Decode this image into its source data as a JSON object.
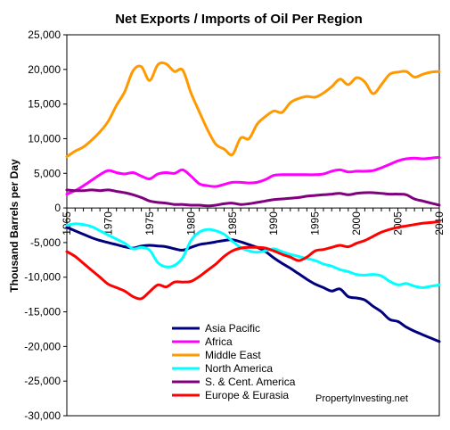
{
  "chart_data": {
    "type": "line",
    "title": "Net Exports / Imports of Oil Per Region",
    "xlabel": "",
    "ylabel": "Thousand Barrels per Day",
    "xlim": [
      1965,
      2010
    ],
    "ylim": [
      -30000,
      25000
    ],
    "x_ticks": [
      "1965",
      "1970",
      "1975",
      "1980",
      "1985",
      "1990",
      "1995",
      "2000",
      "2005",
      "2010"
    ],
    "y_ticks": [
      "25,000",
      "20,000",
      "15,000",
      "10,000",
      "5,000",
      "0",
      "-5,000",
      "-10,000",
      "-15,000",
      "-20,000",
      "-25,000",
      "-30,000"
    ],
    "grid": false,
    "legend_position": "bottom-left-inside",
    "annotation": "PropertyInvesting.net",
    "x": [
      1965,
      1966,
      1967,
      1968,
      1969,
      1970,
      1971,
      1972,
      1973,
      1974,
      1975,
      1976,
      1977,
      1978,
      1979,
      1980,
      1981,
      1982,
      1983,
      1984,
      1985,
      1986,
      1987,
      1988,
      1989,
      1990,
      1991,
      1992,
      1993,
      1994,
      1995,
      1996,
      1997,
      1998,
      1999,
      2000,
      2001,
      2002,
      2003,
      2004,
      2005,
      2006,
      2007,
      2008,
      2009,
      2010
    ],
    "series": [
      {
        "name": "Asia Pacific",
        "color": "#00007f",
        "values": [
          -2800,
          -3300,
          -3800,
          -4300,
          -4700,
          -5000,
          -5300,
          -5600,
          -5800,
          -5500,
          -5400,
          -5500,
          -5600,
          -5900,
          -6100,
          -5700,
          -5300,
          -5100,
          -4900,
          -4700,
          -4600,
          -4900,
          -5300,
          -5700,
          -6300,
          -7200,
          -8000,
          -8700,
          -9500,
          -10300,
          -11000,
          -11500,
          -12000,
          -11700,
          -12800,
          -13000,
          -13300,
          -14200,
          -15000,
          -16100,
          -16400,
          -17200,
          -17800,
          -18300,
          -18800,
          -19300
        ]
      },
      {
        "name": "Africa",
        "color": "#ff00ff",
        "values": [
          2000,
          2500,
          3200,
          4000,
          4800,
          5400,
          5100,
          4900,
          5100,
          4600,
          4200,
          4900,
          5100,
          5000,
          5500,
          4600,
          3500,
          3200,
          3100,
          3400,
          3700,
          3700,
          3600,
          3700,
          4100,
          4700,
          4800,
          4800,
          4800,
          4800,
          4800,
          4900,
          5300,
          5500,
          5200,
          5300,
          5300,
          5400,
          5800,
          6300,
          6800,
          7100,
          7200,
          7100,
          7200,
          7300
        ]
      },
      {
        "name": "Middle East",
        "color": "#ff9900",
        "values": [
          7400,
          8200,
          8800,
          9800,
          11000,
          12500,
          14800,
          16800,
          19800,
          20400,
          18400,
          20700,
          20800,
          19700,
          19900,
          16600,
          13900,
          11300,
          9200,
          8500,
          7700,
          10100,
          10000,
          12100,
          13200,
          14000,
          13800,
          15200,
          15800,
          16100,
          16000,
          16600,
          17500,
          18600,
          17800,
          18800,
          18200,
          16500,
          17800,
          19300,
          19600,
          19700,
          18900,
          19300,
          19600,
          19700
        ]
      },
      {
        "name": "North America",
        "color": "#00ffff",
        "values": [
          -2500,
          -2300,
          -2400,
          -2700,
          -3300,
          -3900,
          -4500,
          -5100,
          -5900,
          -5700,
          -6100,
          -7900,
          -8500,
          -8300,
          -7200,
          -4700,
          -3500,
          -3100,
          -3300,
          -3800,
          -4800,
          -5700,
          -6200,
          -6400,
          -6200,
          -5900,
          -6300,
          -6700,
          -7000,
          -7300,
          -7600,
          -8100,
          -8400,
          -8900,
          -9200,
          -9600,
          -9700,
          -9600,
          -9800,
          -10600,
          -11100,
          -10900,
          -11300,
          -11500,
          -11300,
          -11100
        ]
      },
      {
        "name": "S. & Cent. America",
        "color": "#800080",
        "values": [
          2600,
          2500,
          2500,
          2600,
          2500,
          2600,
          2400,
          2200,
          1900,
          1500,
          1000,
          800,
          700,
          500,
          500,
          400,
          400,
          300,
          400,
          600,
          700,
          500,
          600,
          800,
          1000,
          1200,
          1300,
          1400,
          1500,
          1700,
          1800,
          1900,
          2000,
          2100,
          1900,
          2100,
          2200,
          2200,
          2100,
          2000,
          2000,
          1900,
          1300,
          1000,
          700,
          400
        ]
      },
      {
        "name": "Europe & Eurasia",
        "color": "#ff0000",
        "values": [
          -6300,
          -7000,
          -8000,
          -9000,
          -10000,
          -11000,
          -11500,
          -12000,
          -12800,
          -13100,
          -12100,
          -11100,
          -11400,
          -10700,
          -10700,
          -10600,
          -9900,
          -9000,
          -8100,
          -7000,
          -6200,
          -5800,
          -5700,
          -5700,
          -5800,
          -6200,
          -6700,
          -7100,
          -7600,
          -7100,
          -6200,
          -6000,
          -5700,
          -5400,
          -5600,
          -5100,
          -4700,
          -4100,
          -3500,
          -3100,
          -2800,
          -2600,
          -2400,
          -2200,
          -2100,
          -2000
        ]
      }
    ]
  }
}
